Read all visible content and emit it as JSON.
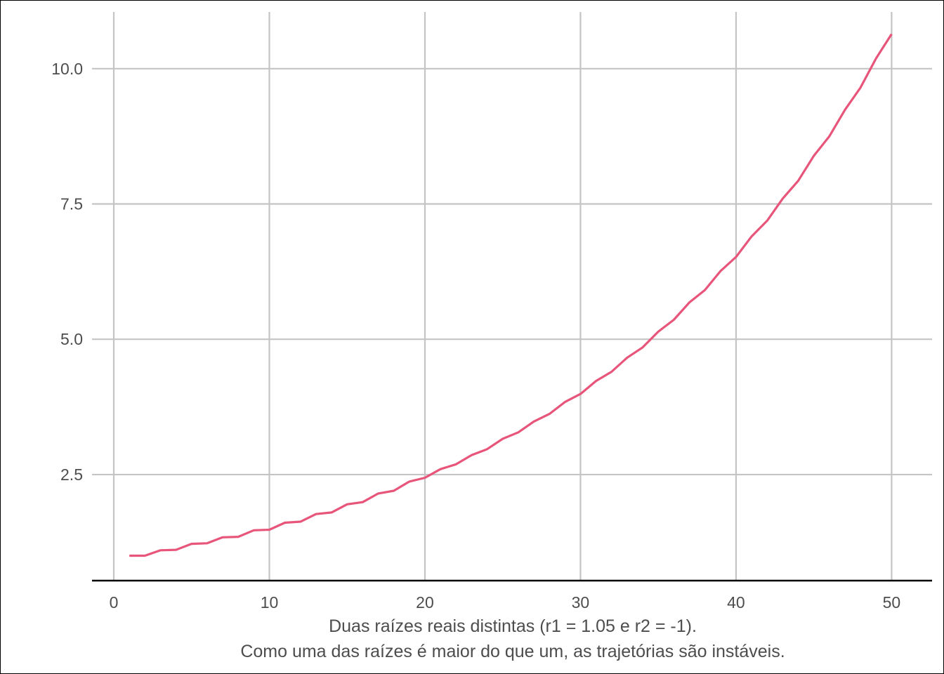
{
  "chart_data": {
    "type": "line",
    "title": "",
    "xlabel": "",
    "ylabel": "",
    "caption_lines": [
      "Duas raízes reais distintas (r1 = 1.05 e r2 = -1).",
      "Como uma das raízes é maior do que um, as trajetórias são instáveis."
    ],
    "xlim": [
      -1.4,
      52.6
    ],
    "ylim": [
      0.54,
      11.1
    ],
    "x_ticks": [
      0,
      10,
      20,
      30,
      40,
      50
    ],
    "x_tick_labels": [
      "0",
      "10",
      "20",
      "30",
      "40",
      "50"
    ],
    "y_ticks": [
      2.5,
      5.0,
      7.5,
      10.0
    ],
    "y_tick_labels": [
      "2.5",
      "5.0",
      "7.5",
      "10.0"
    ],
    "grid": true,
    "line_color": "#e8557a",
    "series": [
      {
        "x": [
          1,
          2,
          3,
          4,
          5,
          6,
          7,
          8,
          9,
          10,
          11,
          12,
          13,
          14,
          15,
          16,
          17,
          18,
          19,
          20,
          21,
          22,
          23,
          24,
          25,
          26,
          27,
          28,
          29,
          30,
          31,
          32,
          33,
          34,
          35,
          36,
          37,
          38,
          39,
          40,
          41,
          42,
          43,
          44,
          45,
          46,
          47,
          48,
          49,
          50
        ],
        "values": [
          1.0,
          1.0,
          1.1,
          1.11,
          1.22,
          1.23,
          1.34,
          1.35,
          1.47,
          1.48,
          1.61,
          1.63,
          1.77,
          1.8,
          1.95,
          1.99,
          2.15,
          2.2,
          2.37,
          2.44,
          2.6,
          2.69,
          2.86,
          2.97,
          3.16,
          3.28,
          3.48,
          3.62,
          3.84,
          3.99,
          4.23,
          4.4,
          4.66,
          4.85,
          5.14,
          5.36,
          5.68,
          5.91,
          6.26,
          6.52,
          6.9,
          7.19,
          7.6,
          7.93,
          8.39,
          8.75,
          9.24,
          9.65,
          10.19,
          10.64
        ]
      }
    ]
  }
}
